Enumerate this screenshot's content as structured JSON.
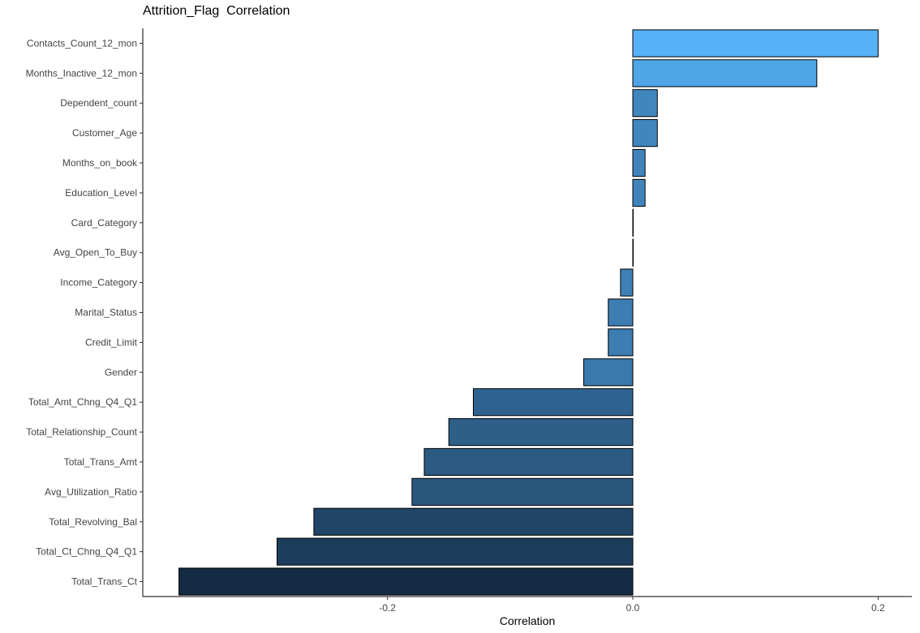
{
  "chart_data": {
    "type": "bar",
    "orientation": "horizontal",
    "title": "Attrition_Flag  Correlation",
    "xlabel": "Correlation",
    "ylabel": "",
    "xlim": [
      -0.385,
      0.23
    ],
    "xticks": [
      -0.2,
      0.0,
      0.2
    ],
    "xtick_labels": [
      "-0.2",
      "0.0",
      "0.2"
    ],
    "grid": false,
    "legend": "none",
    "bar_outline_color": "#000000",
    "color_scale": {
      "low": "#132B43",
      "high": "#56B1F7"
    },
    "categories": [
      "Contacts_Count_12_mon",
      "Months_Inactive_12_mon",
      "Dependent_count",
      "Customer_Age",
      "Months_on_book",
      "Education_Level",
      "Card_Category",
      "Avg_Open_To_Buy",
      "Income_Category",
      "Marital_Status",
      "Credit_Limit",
      "Gender",
      "Total_Amt_Chng_Q4_Q1",
      "Total_Relationship_Count",
      "Total_Trans_Amt",
      "Avg_Utilization_Ratio",
      "Total_Revolving_Bal",
      "Total_Ct_Chng_Q4_Q1",
      "Total_Trans_Ct"
    ],
    "values": [
      0.2,
      0.15,
      0.02,
      0.02,
      0.01,
      0.01,
      0.0,
      0.0,
      -0.01,
      -0.02,
      -0.02,
      -0.04,
      -0.13,
      -0.15,
      -0.17,
      -0.18,
      -0.26,
      -0.29,
      -0.37
    ]
  }
}
